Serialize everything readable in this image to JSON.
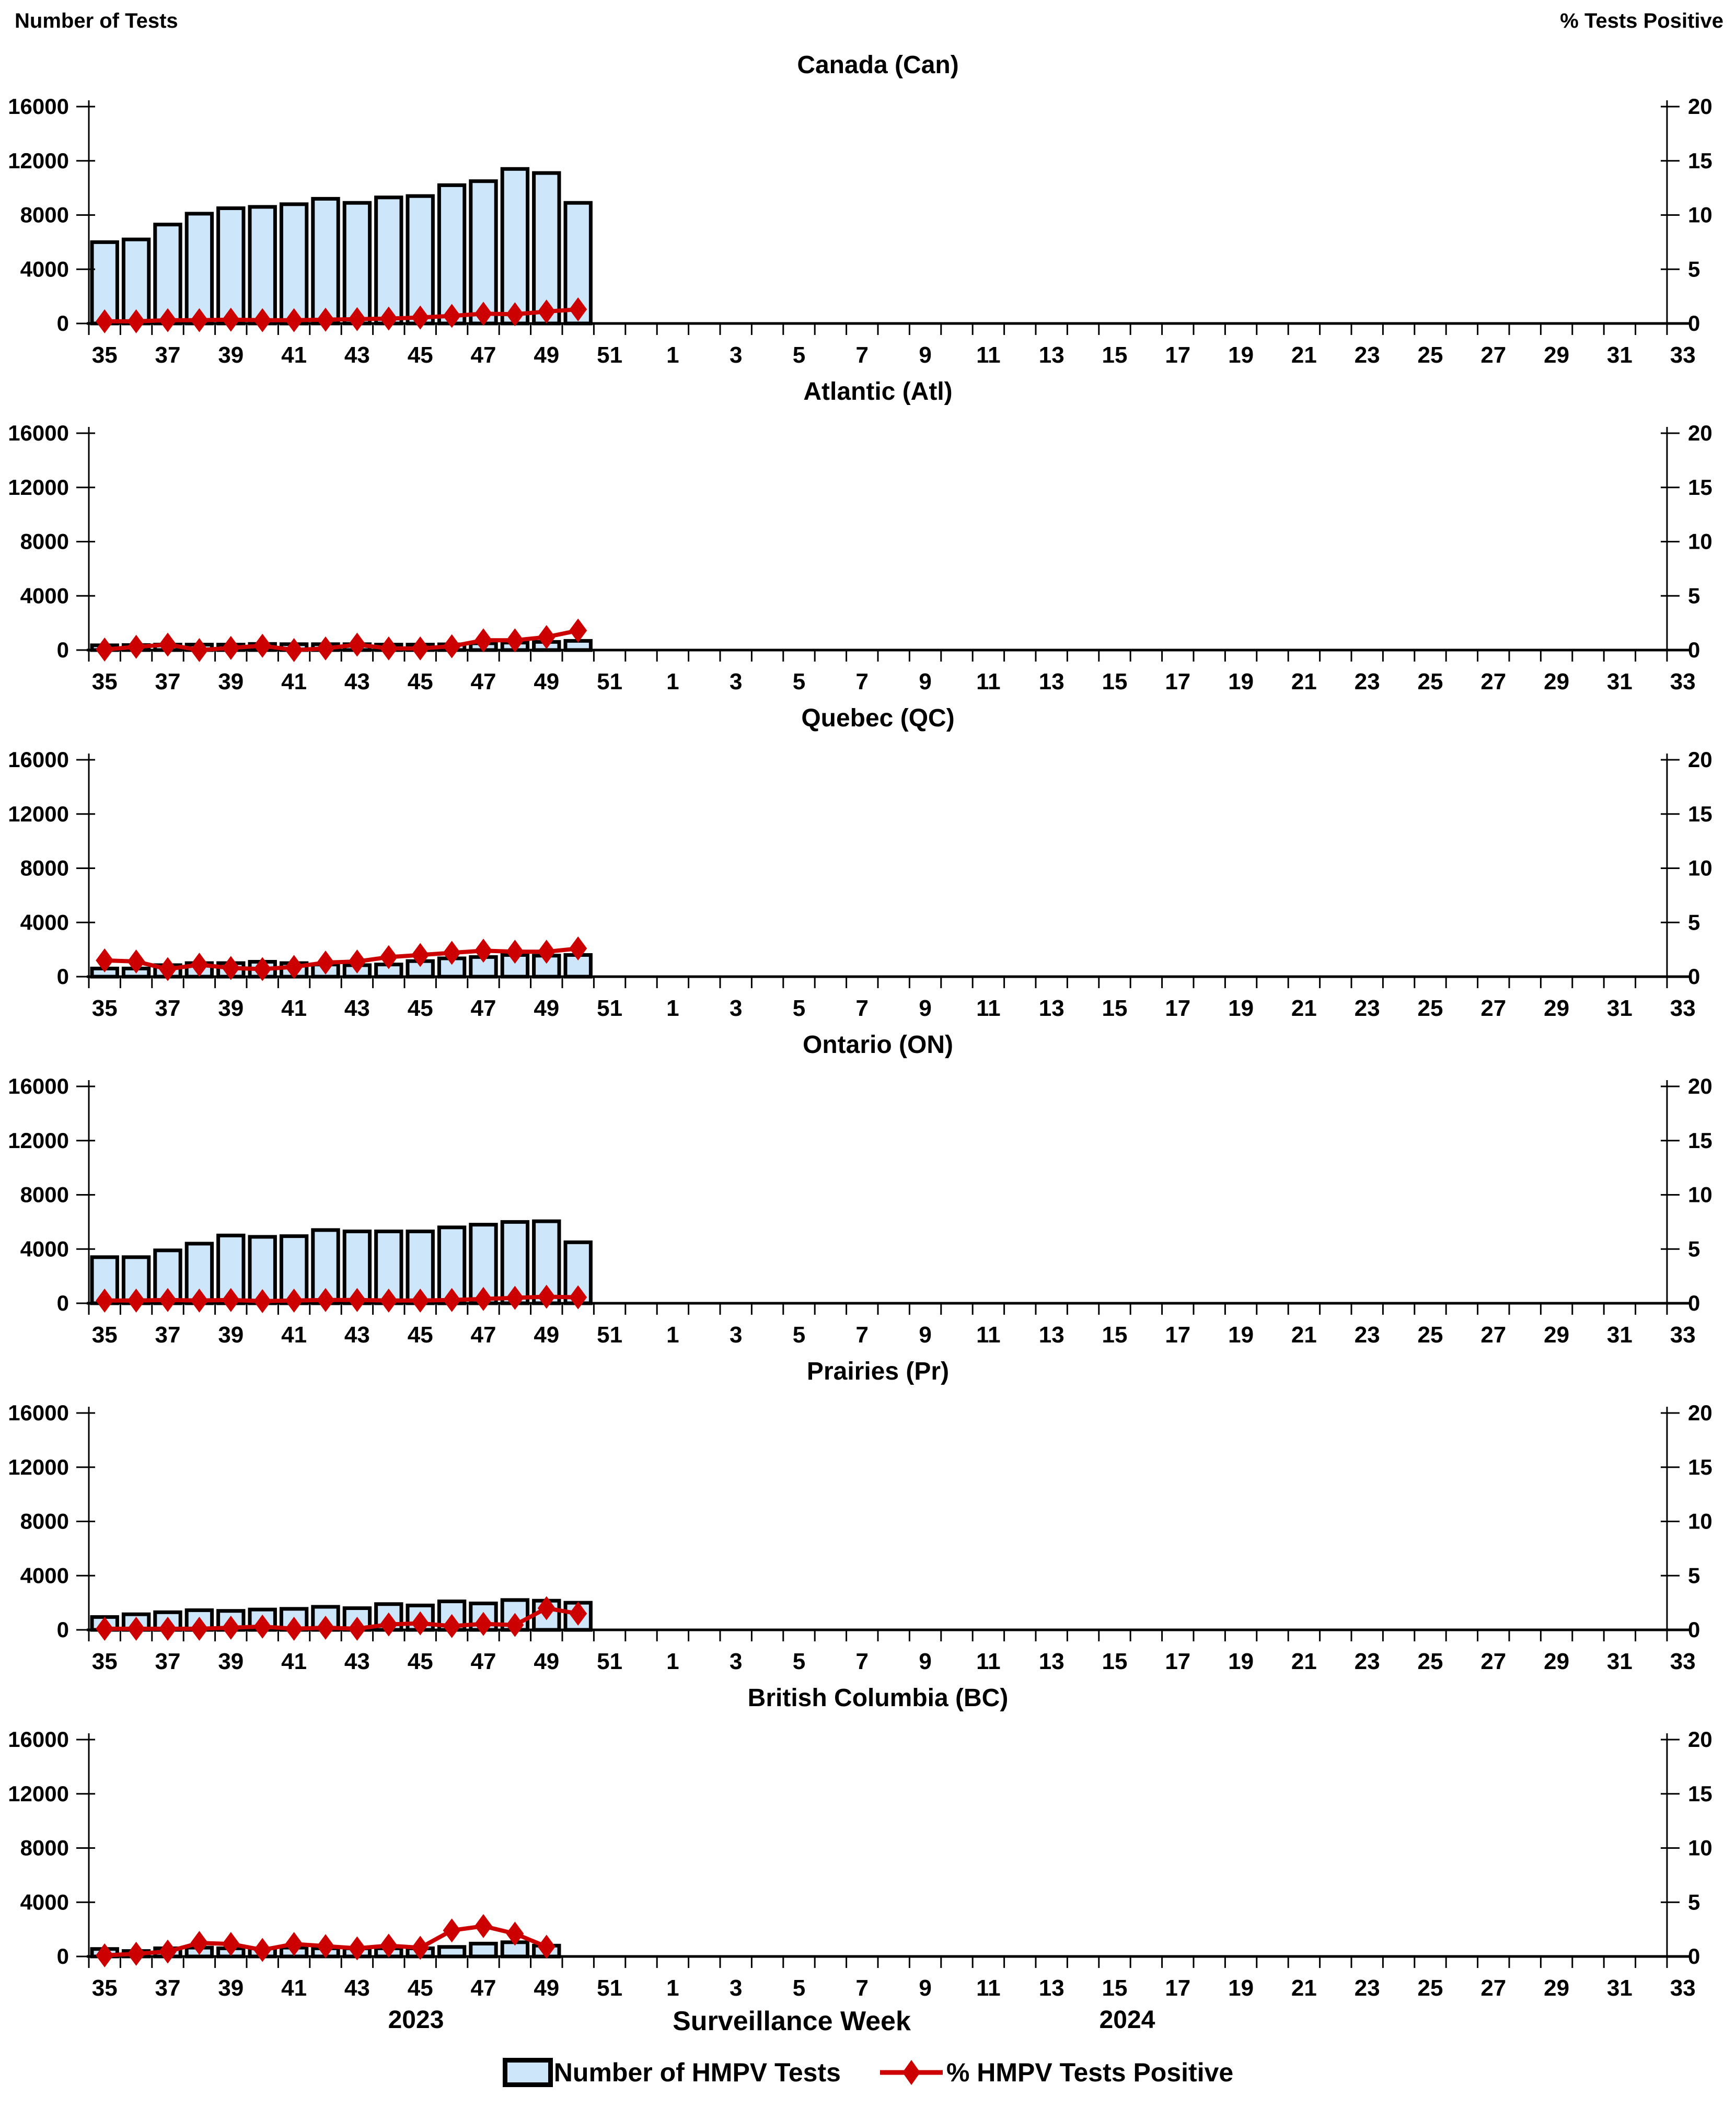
{
  "page": {
    "left_axis_title": "Number of Tests",
    "right_axis_title": "% Tests Positive",
    "xlabel": "Surveillance Week",
    "year_left": "2023",
    "year_right": "2024",
    "legend": {
      "bar_label": "Number of HMPV Tests",
      "line_label": "% HMPV Tests Positive"
    },
    "colors": {
      "bar_fill": "#CDE6FA",
      "bar_border": "#000000",
      "line": "#CC0000",
      "axis": "#000000"
    }
  },
  "x_axis": {
    "label": "Surveillance Week",
    "start_week": 35,
    "total_slots": 50,
    "tick_labels": [
      "35",
      "37",
      "39",
      "41",
      "43",
      "45",
      "47",
      "49",
      "51",
      "1",
      "3",
      "5",
      "7",
      "9",
      "11",
      "13",
      "15",
      "17",
      "19",
      "21",
      "23",
      "25",
      "27",
      "29",
      "31",
      "33"
    ],
    "year_segments": [
      "2023",
      "2024"
    ]
  },
  "chart_data": [
    {
      "type": "bar+line",
      "title": "Canada (Can)",
      "left_ylabel": "Number of Tests",
      "right_ylabel": "% Tests Positive",
      "left_ylim": [
        0,
        16000
      ],
      "right_ylim": [
        0,
        20
      ],
      "left_yticks": [
        0,
        4000,
        8000,
        12000,
        16000
      ],
      "right_yticks": [
        0,
        5,
        10,
        15,
        20
      ],
      "grid": false,
      "weeks": [
        35,
        36,
        37,
        38,
        39,
        40,
        41,
        42,
        43,
        44,
        45,
        46,
        47,
        48,
        49,
        50
      ],
      "series": [
        {
          "name": "Number of HMPV Tests",
          "type": "bar",
          "axis": "left",
          "values": [
            6000,
            6200,
            7300,
            8100,
            8500,
            8600,
            8800,
            9200,
            8900,
            9300,
            9400,
            10200,
            10500,
            11400,
            11100,
            8900
          ]
        },
        {
          "name": "% HMPV Tests Positive",
          "type": "line",
          "axis": "right",
          "values": [
            0.2,
            0.2,
            0.3,
            0.3,
            0.35,
            0.3,
            0.3,
            0.35,
            0.4,
            0.45,
            0.55,
            0.7,
            0.9,
            0.85,
            1.1,
            1.3
          ]
        }
      ]
    },
    {
      "type": "bar+line",
      "title": "Atlantic (Atl)",
      "left_ylabel": "Number of Tests",
      "right_ylabel": "% Tests Positive",
      "left_ylim": [
        0,
        16000
      ],
      "right_ylim": [
        0,
        20
      ],
      "left_yticks": [
        0,
        4000,
        8000,
        12000,
        16000
      ],
      "right_yticks": [
        0,
        5,
        10,
        15,
        20
      ],
      "grid": false,
      "weeks": [
        35,
        36,
        37,
        38,
        39,
        40,
        41,
        42,
        43,
        44,
        45,
        46,
        47,
        48,
        49,
        50
      ],
      "series": [
        {
          "name": "Number of HMPV Tests",
          "type": "bar",
          "axis": "left",
          "values": [
            350,
            370,
            400,
            400,
            400,
            450,
            430,
            430,
            430,
            400,
            400,
            420,
            500,
            550,
            600,
            680
          ]
        },
        {
          "name": "% HMPV Tests Positive",
          "type": "line",
          "axis": "right",
          "values": [
            0.05,
            0.3,
            0.5,
            0.0,
            0.2,
            0.4,
            0.0,
            0.15,
            0.5,
            0.15,
            0.15,
            0.35,
            0.9,
            0.9,
            1.2,
            1.8
          ]
        }
      ]
    },
    {
      "type": "bar+line",
      "title": "Quebec (QC)",
      "left_ylabel": "Number of Tests",
      "right_ylabel": "% Tests Positive",
      "left_ylim": [
        0,
        16000
      ],
      "right_ylim": [
        0,
        20
      ],
      "left_yticks": [
        0,
        4000,
        8000,
        12000,
        16000
      ],
      "right_yticks": [
        0,
        5,
        10,
        15,
        20
      ],
      "grid": false,
      "weeks": [
        35,
        36,
        37,
        38,
        39,
        40,
        41,
        42,
        43,
        44,
        45,
        46,
        47,
        48,
        49,
        50
      ],
      "series": [
        {
          "name": "Number of HMPV Tests",
          "type": "bar",
          "axis": "left",
          "values": [
            600,
            600,
            850,
            1000,
            1000,
            1100,
            1000,
            900,
            850,
            900,
            1150,
            1350,
            1450,
            1600,
            1550,
            1600
          ]
        },
        {
          "name": "% HMPV Tests Positive",
          "type": "line",
          "axis": "right",
          "values": [
            1.5,
            1.4,
            0.7,
            1.1,
            0.8,
            0.7,
            0.9,
            1.3,
            1.4,
            1.8,
            2.0,
            2.2,
            2.4,
            2.3,
            2.3,
            2.6
          ]
        }
      ]
    },
    {
      "type": "bar+line",
      "title": "Ontario (ON)",
      "left_ylabel": "Number of Tests",
      "right_ylabel": "% Tests Positive",
      "left_ylim": [
        0,
        16000
      ],
      "right_ylim": [
        0,
        20
      ],
      "left_yticks": [
        0,
        4000,
        8000,
        12000,
        16000
      ],
      "right_yticks": [
        0,
        5,
        10,
        15,
        20
      ],
      "grid": false,
      "weeks": [
        35,
        36,
        37,
        38,
        39,
        40,
        41,
        42,
        43,
        44,
        45,
        46,
        47,
        48,
        49,
        50
      ],
      "series": [
        {
          "name": "Number of HMPV Tests",
          "type": "bar",
          "axis": "left",
          "values": [
            3400,
            3400,
            3900,
            4400,
            5000,
            4900,
            4950,
            5400,
            5300,
            5300,
            5300,
            5600,
            5800,
            6000,
            6050,
            4500
          ]
        },
        {
          "name": "% HMPV Tests Positive",
          "type": "line",
          "axis": "right",
          "values": [
            0.25,
            0.25,
            0.3,
            0.25,
            0.3,
            0.2,
            0.25,
            0.3,
            0.3,
            0.25,
            0.25,
            0.3,
            0.4,
            0.5,
            0.6,
            0.55
          ]
        }
      ]
    },
    {
      "type": "bar+line",
      "title": "Prairies (Pr)",
      "left_ylabel": "Number of Tests",
      "right_ylabel": "% Tests Positive",
      "left_ylim": [
        0,
        16000
      ],
      "right_ylim": [
        0,
        20
      ],
      "left_yticks": [
        0,
        4000,
        8000,
        12000,
        16000
      ],
      "right_yticks": [
        0,
        5,
        10,
        15,
        20
      ],
      "grid": false,
      "weeks": [
        35,
        36,
        37,
        38,
        39,
        40,
        41,
        42,
        43,
        44,
        45,
        46,
        47,
        48,
        49,
        50
      ],
      "series": [
        {
          "name": "Number of HMPV Tests",
          "type": "bar",
          "axis": "left",
          "values": [
            950,
            1150,
            1300,
            1450,
            1400,
            1500,
            1550,
            1700,
            1600,
            1900,
            1800,
            2100,
            1950,
            2200,
            2150,
            2000
          ]
        },
        {
          "name": "% HMPV Tests Positive",
          "type": "line",
          "axis": "right",
          "values": [
            0.1,
            0.1,
            0.1,
            0.1,
            0.2,
            0.3,
            0.1,
            0.2,
            0.1,
            0.5,
            0.6,
            0.35,
            0.55,
            0.45,
            2.0,
            1.5
          ]
        }
      ]
    },
    {
      "type": "bar+line",
      "title": "British Columbia (BC)",
      "left_ylabel": "Number of Tests",
      "right_ylabel": "% Tests Positive",
      "left_ylim": [
        0,
        16000
      ],
      "right_ylim": [
        0,
        20
      ],
      "left_yticks": [
        0,
        4000,
        8000,
        12000,
        16000
      ],
      "right_yticks": [
        0,
        5,
        10,
        15,
        20
      ],
      "grid": false,
      "weeks": [
        35,
        36,
        37,
        38,
        39,
        40,
        41,
        42,
        43,
        44,
        45,
        46,
        47,
        48,
        49
      ],
      "series": [
        {
          "name": "Number of HMPV Tests",
          "type": "bar",
          "axis": "left",
          "values": [
            550,
            400,
            600,
            650,
            600,
            600,
            650,
            600,
            600,
            600,
            600,
            700,
            950,
            1050,
            800
          ]
        },
        {
          "name": "% HMPV Tests Positive",
          "type": "line",
          "axis": "right",
          "values": [
            0.1,
            0.25,
            0.45,
            1.25,
            1.15,
            0.6,
            1.15,
            0.95,
            0.75,
            1.0,
            0.8,
            2.4,
            2.8,
            2.1,
            0.9
          ]
        }
      ]
    }
  ]
}
